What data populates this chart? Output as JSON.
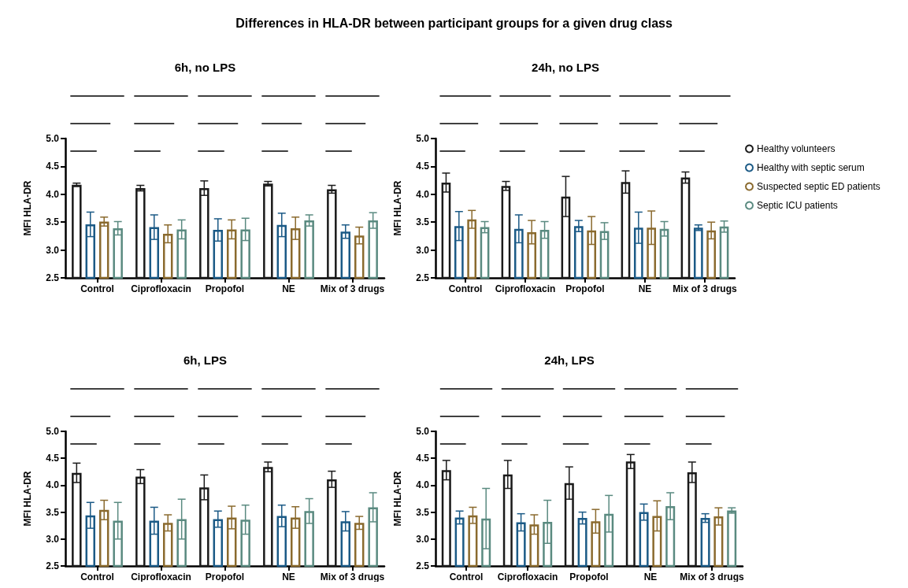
{
  "chart_data": [
    {
      "type": "bar",
      "title": "6h, no LPS",
      "annotations": [
        "Differences in HLA-DR between participant groups for a given drug class"
      ],
      "ylabel": "MFI HLA-DR",
      "categories": [
        "Control",
        "Ciprofloxacin",
        "Propofol",
        "NE",
        "Mix of 3 drugs"
      ],
      "ylim": [
        2.5,
        5
      ],
      "yticks": [
        2.5,
        {
          "value": 3,
          "label": "3.0"
        },
        3.5,
        {
          "value": 4,
          "label": "4.0"
        },
        4.5,
        {
          "value": 5,
          "label": "5.0"
        }
      ],
      "grid": false,
      "legend": "right",
      "series": [
        {
          "name": "Healthy volunteers",
          "color": "#1a1a1a",
          "values": [
            4.17,
            4.11,
            4.11,
            4.19,
            4.09
          ],
          "errors": [
            0.03,
            0.05,
            0.13,
            0.04,
            0.07
          ]
        },
        {
          "name": "Healthy with septic serum",
          "color": "#1b5a86",
          "values": [
            3.46,
            3.41,
            3.36,
            3.45,
            3.33
          ],
          "errors": [
            0.22,
            0.22,
            0.2,
            0.21,
            0.12
          ]
        },
        {
          "name": "Suspected septic ED patients",
          "color": "#8a6a2e",
          "values": [
            3.51,
            3.29,
            3.37,
            3.39,
            3.26
          ],
          "errors": [
            0.08,
            0.16,
            0.17,
            0.2,
            0.15
          ]
        },
        {
          "name": "Septic ICU patients",
          "color": "#5a8a80",
          "values": [
            3.39,
            3.37,
            3.37,
            3.53,
            3.53
          ],
          "errors": [
            0.12,
            0.17,
            0.2,
            0.1,
            0.14
          ]
        }
      ]
    },
    {
      "type": "bar",
      "title": "24h, no LPS",
      "ylabel": "MFI HLA-DR",
      "categories": [
        "Control",
        "Ciprofloxacin",
        "Propofol",
        "NE",
        "Mix of 3 drugs"
      ],
      "ylim": [
        2.5,
        5
      ],
      "yticks": [
        2.5,
        {
          "value": 3,
          "label": "3.0"
        },
        3.5,
        {
          "value": 4,
          "label": "4.0"
        },
        4.5,
        {
          "value": 5,
          "label": "5.0"
        }
      ],
      "grid": false,
      "series": [
        {
          "color": "#1a1a1a",
          "values": [
            4.21,
            4.15,
            3.96,
            4.22,
            4.3
          ],
          "errors": [
            0.17,
            0.08,
            0.36,
            0.2,
            0.1
          ]
        },
        {
          "color": "#1b5a86",
          "values": [
            3.43,
            3.38,
            3.43,
            3.4,
            3.4
          ],
          "errors": [
            0.26,
            0.25,
            0.1,
            0.28,
            0.05
          ]
        },
        {
          "color": "#8a6a2e",
          "values": [
            3.55,
            3.32,
            3.35,
            3.4,
            3.35
          ],
          "errors": [
            0.16,
            0.21,
            0.25,
            0.3,
            0.15
          ]
        },
        {
          "color": "#5a8a80",
          "values": [
            3.41,
            3.36,
            3.34,
            3.38,
            3.42
          ],
          "errors": [
            0.1,
            0.15,
            0.15,
            0.13,
            0.1
          ]
        }
      ]
    },
    {
      "type": "bar",
      "title": "6h, LPS",
      "ylabel": "MFI HLA-DR",
      "categories": [
        "Control",
        "Ciprofloxacin",
        "Propofol",
        "NE",
        "Mix of 3 drugs"
      ],
      "ylim": [
        2.5,
        5
      ],
      "yticks": [
        2.5,
        {
          "value": 3,
          "label": "3.0"
        },
        3.5,
        {
          "value": 4,
          "label": "4.0"
        },
        4.5,
        {
          "value": 5,
          "label": "5.0"
        }
      ],
      "grid": false,
      "series": [
        {
          "color": "#1a1a1a",
          "values": [
            4.23,
            4.16,
            3.96,
            4.34,
            4.11
          ],
          "errors": [
            0.18,
            0.13,
            0.23,
            0.09,
            0.15
          ]
        },
        {
          "color": "#1b5a86",
          "values": [
            3.44,
            3.34,
            3.37,
            3.43,
            3.33
          ],
          "errors": [
            0.24,
            0.25,
            0.15,
            0.2,
            0.18
          ]
        },
        {
          "color": "#8a6a2e",
          "values": [
            3.54,
            3.3,
            3.4,
            3.4,
            3.3
          ],
          "errors": [
            0.18,
            0.15,
            0.21,
            0.2,
            0.12
          ]
        },
        {
          "color": "#5a8a80",
          "values": [
            3.34,
            3.37,
            3.36,
            3.52,
            3.59
          ],
          "errors": [
            0.34,
            0.37,
            0.27,
            0.23,
            0.27
          ]
        }
      ]
    },
    {
      "type": "bar",
      "title": "24h, LPS",
      "ylabel": "MFI HLA-DR",
      "categories": [
        "Control",
        "Ciprofloxacin",
        "Propofol",
        "NE",
        "Mix of 3 drugs"
      ],
      "ylim": [
        2.5,
        5
      ],
      "yticks": [
        2.5,
        {
          "value": 3,
          "label": "3.0"
        },
        3.5,
        {
          "value": 4,
          "label": "4.0"
        },
        4.5,
        {
          "value": 5,
          "label": "5.0"
        }
      ],
      "grid": false,
      "series": [
        {
          "color": "#1a1a1a",
          "values": [
            4.28,
            4.2,
            4.04,
            4.44,
            4.24
          ],
          "errors": [
            0.18,
            0.26,
            0.3,
            0.13,
            0.19
          ]
        },
        {
          "color": "#1b5a86",
          "values": [
            3.4,
            3.31,
            3.39,
            3.5,
            3.39
          ],
          "errors": [
            0.12,
            0.16,
            0.11,
            0.15,
            0.08
          ]
        },
        {
          "color": "#8a6a2e",
          "values": [
            3.44,
            3.27,
            3.33,
            3.43,
            3.42
          ],
          "errors": [
            0.15,
            0.18,
            0.22,
            0.28,
            0.16
          ]
        },
        {
          "color": "#5a8a80",
          "values": [
            3.38,
            3.32,
            3.47,
            3.61,
            3.53
          ],
          "errors": [
            0.56,
            0.4,
            0.34,
            0.25,
            0.05
          ]
        }
      ]
    }
  ]
}
